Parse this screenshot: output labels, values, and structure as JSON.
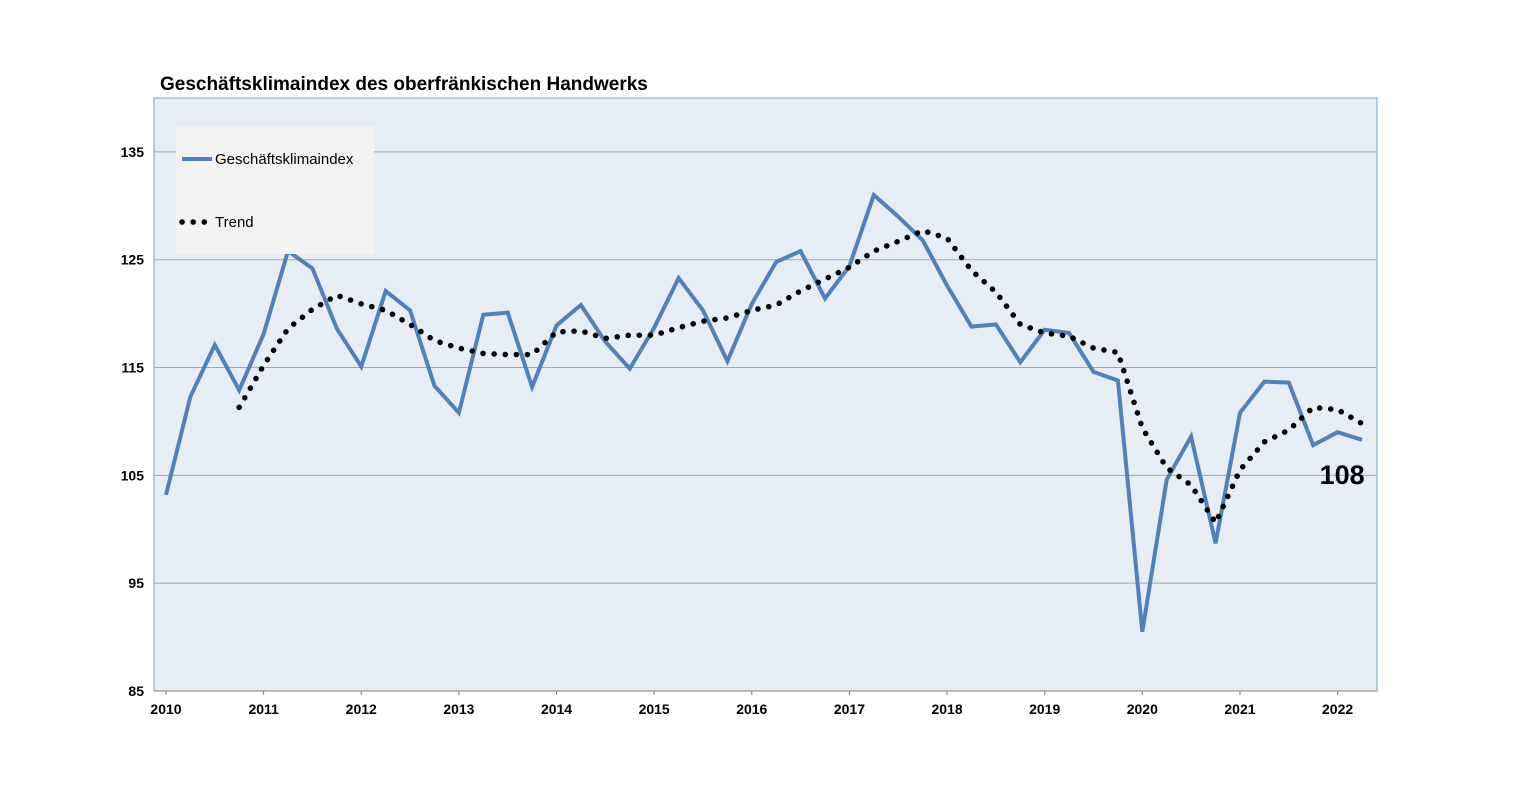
{
  "chart_data": {
    "type": "line",
    "title": "Geschäftsklimaindex des oberfränkischen Handwerks",
    "xlabel": "",
    "ylabel": "",
    "ylim": [
      85,
      140
    ],
    "xlim": [
      2010,
      2022.25
    ],
    "yticks": [
      85,
      95,
      105,
      115,
      125,
      135
    ],
    "xticks": [
      "2010",
      "2011",
      "2012",
      "2013",
      "2014",
      "2015",
      "2016",
      "2017",
      "2018",
      "2019",
      "2020",
      "2021",
      "2022"
    ],
    "grid": true,
    "legend_position": "top-left",
    "series": [
      {
        "name": "Geschäftsklimaindex",
        "style": "solid",
        "color": "#4f81bd",
        "x": [
          2010,
          2010.25,
          2010.5,
          2010.75,
          2011,
          2011.25,
          2011.5,
          2011.75,
          2012,
          2012.25,
          2012.5,
          2012.75,
          2013,
          2013.25,
          2013.5,
          2013.75,
          2014,
          2014.25,
          2014.5,
          2014.75,
          2015,
          2015.25,
          2015.5,
          2015.75,
          2016,
          2016.25,
          2016.5,
          2016.75,
          2017,
          2017.25,
          2017.5,
          2017.75,
          2018,
          2018.25,
          2018.5,
          2018.75,
          2019,
          2019.25,
          2019.5,
          2019.75,
          2020,
          2020.25,
          2020.5,
          2020.75,
          2021,
          2021.25,
          2021.5,
          2021.75,
          2022,
          2022.25
        ],
        "y": [
          103.2,
          112.3,
          117.1,
          112.9,
          118.1,
          125.8,
          124.2,
          118.6,
          115.1,
          122.1,
          120.3,
          113.3,
          110.8,
          119.9,
          120.1,
          113.2,
          118.9,
          120.8,
          117.4,
          114.9,
          118.7,
          123.3,
          120.3,
          115.6,
          120.9,
          124.8,
          125.8,
          121.4,
          124.4,
          131.0,
          129.0,
          126.8,
          122.6,
          118.8,
          119.0,
          115.5,
          118.5,
          118.2,
          114.6,
          113.8,
          90.5,
          104.6,
          108.6,
          98.7,
          110.8,
          113.7,
          113.6,
          107.8,
          109.0,
          108.3
        ]
      },
      {
        "name": "Trend",
        "style": "dotted",
        "color": "#000000",
        "x": [
          2010.75,
          2011,
          2011.25,
          2011.5,
          2011.75,
          2012,
          2012.25,
          2012.5,
          2012.75,
          2013,
          2013.25,
          2013.5,
          2013.75,
          2014,
          2014.25,
          2014.5,
          2014.75,
          2015,
          2015.25,
          2015.5,
          2015.75,
          2016,
          2016.25,
          2016.5,
          2016.75,
          2017,
          2017.25,
          2017.5,
          2017.75,
          2018,
          2018.25,
          2018.5,
          2018.75,
          2019,
          2019.25,
          2019.5,
          2019.75,
          2020,
          2020.25,
          2020.5,
          2020.75,
          2021,
          2021.25,
          2021.5,
          2021.75,
          2022,
          2022.25
        ],
        "y": [
          111.3,
          115.2,
          118.6,
          120.4,
          121.7,
          120.9,
          120.3,
          119.0,
          117.5,
          116.8,
          116.3,
          116.2,
          116.2,
          118.3,
          118.4,
          117.7,
          118.0,
          118.0,
          118.7,
          119.3,
          119.6,
          120.3,
          120.8,
          122.1,
          123.2,
          124.3,
          125.8,
          126.7,
          127.7,
          127.0,
          124.0,
          122.0,
          119.0,
          118.2,
          117.9,
          116.8,
          116.4,
          109.4,
          105.7,
          104.1,
          100.6,
          105.5,
          108.1,
          109.2,
          111.3,
          111.1,
          109.8
        ]
      }
    ],
    "annotations": [
      {
        "text": "108",
        "x": 2022.0,
        "y": 104.2
      }
    ]
  },
  "colors": {
    "plot_background": "#e7edf4",
    "legend_background": "#f2f2f2",
    "gridline": "#a6a6a6",
    "plot_border": "#7ba0c7"
  }
}
